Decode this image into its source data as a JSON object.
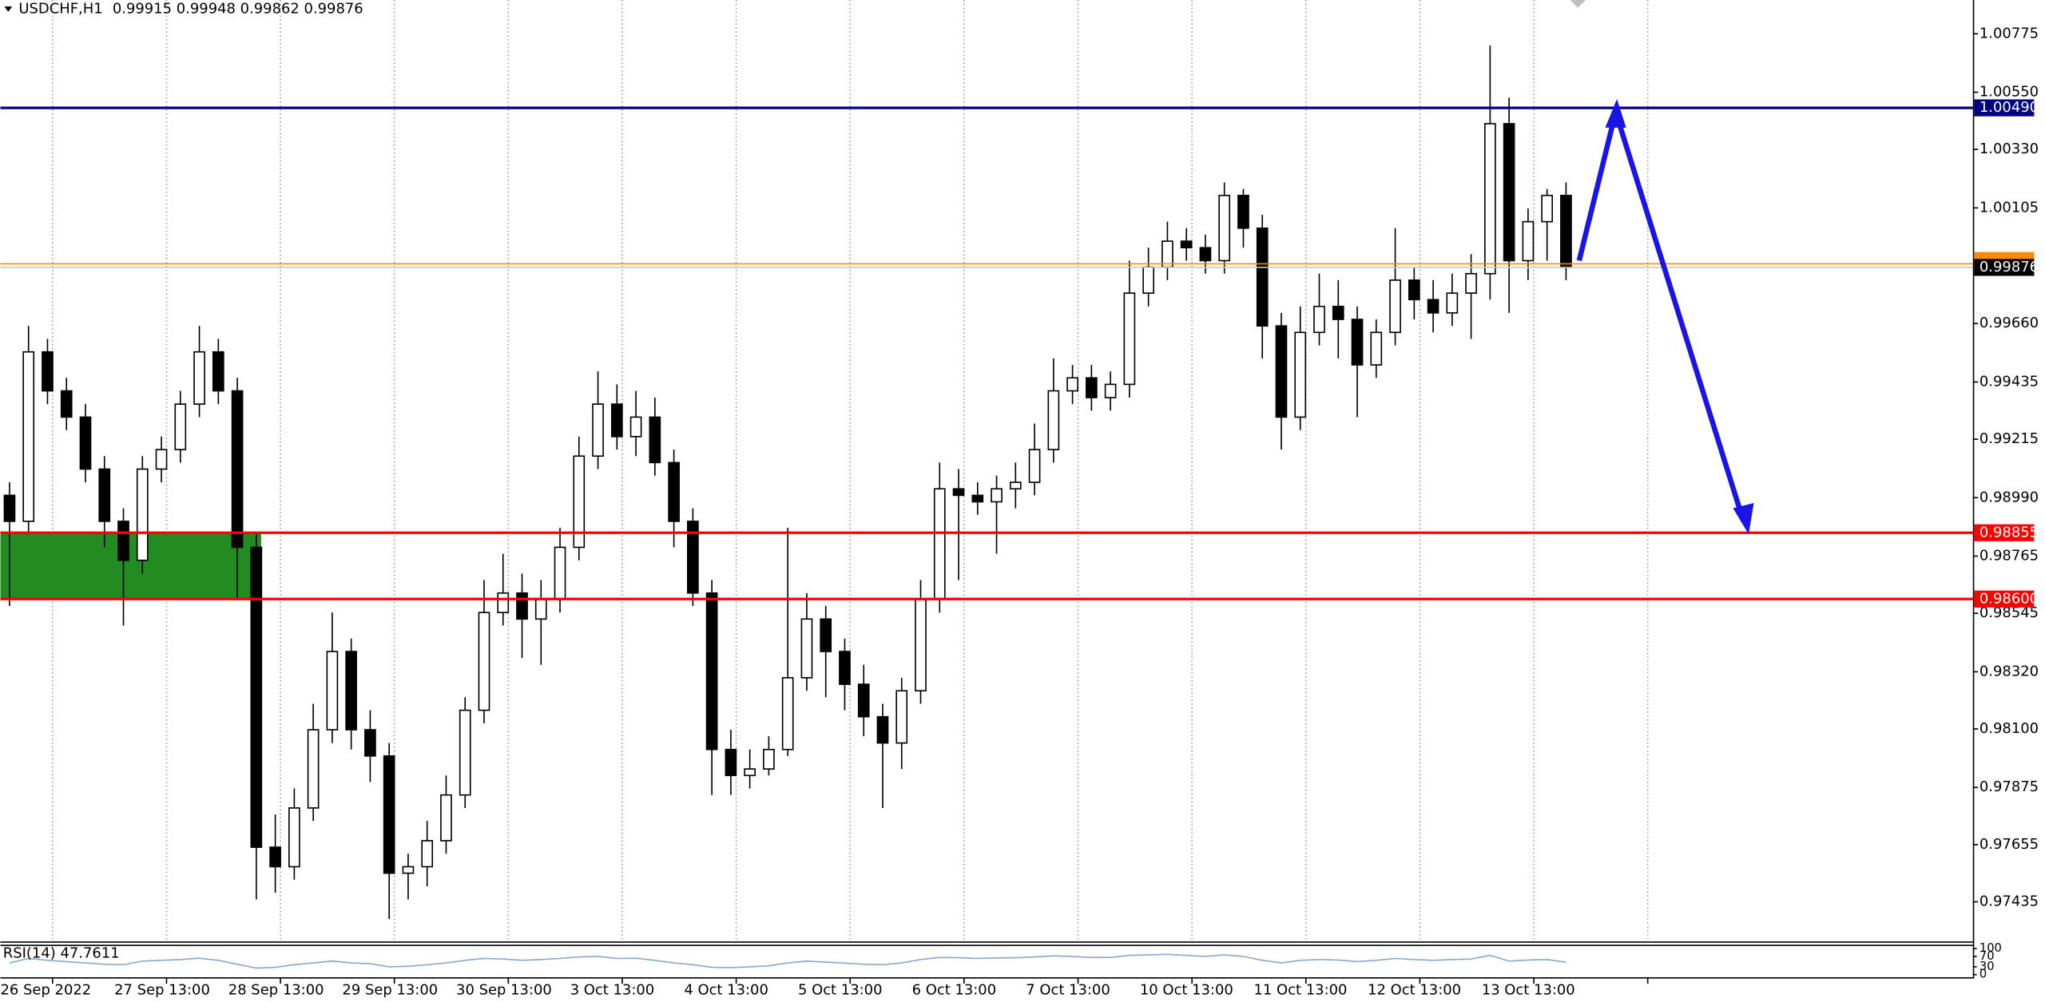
{
  "chart_data": {
    "type": "candlestick",
    "symbol": "USDCHF,H1",
    "ohlc": [
      0.99915,
      0.99948,
      0.99862,
      0.99876
    ],
    "ylim": [
      0.97285,
      1.00905
    ],
    "yticks": [
      1.00775,
      {
        "value": 1.0055,
        "label": "1.00550"
      },
      {
        "value": 1.0033,
        "label": "1.00330"
      },
      1.00105,
      {
        "value": 0.9966,
        "label": "0.99660"
      },
      0.99435,
      0.99215,
      {
        "value": 0.9899,
        "label": "0.98990"
      },
      0.98765,
      0.98545,
      {
        "value": 0.9832,
        "label": "0.98320"
      },
      {
        "value": 0.981,
        "label": "0.98100"
      },
      0.97875,
      0.97655,
      0.97435
    ],
    "xlabels": [
      "26 Sep 2022",
      "27 Sep 13:00",
      "28 Sep 13:00",
      "29 Sep 13:00",
      "30 Sep 13:00",
      "3 Oct 13:00",
      "4 Oct 13:00",
      "5 Oct 13:00",
      "6 Oct 13:00",
      "7 Oct 13:00",
      "10 Oct 13:00",
      "11 Oct 13:00",
      "12 Oct 13:00",
      "13 Oct 13:00"
    ],
    "grid": true,
    "bull_color": "#ffffff",
    "bear_color": "#000000",
    "open": [
      0.98999,
      0.98899,
      0.99551,
      0.99401,
      0.993,
      0.991,
      0.98899,
      0.98749,
      0.991,
      0.99175,
      0.9935,
      0.99551,
      0.99401,
      0.98799,
      0.97645,
      0.9757,
      0.97796,
      0.98097,
      0.98398,
      0.98097,
      0.97996,
      0.97545,
      0.9757,
      0.9767,
      0.97846,
      0.98172,
      0.98548,
      0.98623,
      0.98523,
      0.98598,
      0.98799,
      0.9915,
      0.9935,
      0.99225,
      0.993,
      0.99125,
      0.98899,
      0.98623,
      0.98021,
      0.97921,
      0.97946,
      0.98021,
      0.98297,
      0.98523,
      0.98398,
      0.98272,
      0.98147,
      0.98046,
      0.98247,
      0.98598,
      0.99024,
      0.98999,
      0.98974,
      0.99024,
      0.99049,
      0.99175,
      0.99401,
      0.99451,
      0.99375,
      0.99426,
      0.99777,
      0.99877,
      0.99977,
      0.99952,
      0.99902,
      1.00153,
      1.00027,
      0.99651,
      0.993,
      0.99626,
      0.99726,
      0.99676,
      0.99501,
      0.99626,
      0.99827,
      0.99752,
      0.99701,
      0.99777,
      0.99852,
      1.00429,
      0.99902,
      1.00052,
      1.00153
    ],
    "high": [
      0.99049,
      0.99651,
      0.99601,
      0.99451,
      0.9935,
      0.9915,
      0.98949,
      0.9915,
      0.99225,
      0.99401,
      0.99651,
      0.99601,
      0.99451,
      0.98849,
      0.97771,
      0.97871,
      0.98197,
      0.98548,
      0.98448,
      0.98172,
      0.98046,
      0.9762,
      0.97746,
      0.97921,
      0.98222,
      0.98673,
      0.98774,
      0.98698,
      0.98673,
      0.98874,
      0.99225,
      0.99476,
      0.99426,
      0.99401,
      0.99375,
      0.99175,
      0.98949,
      0.98673,
      0.98097,
      0.98021,
      0.98072,
      0.98874,
      0.98623,
      0.98573,
      0.98448,
      0.98347,
      0.98197,
      0.98297,
      0.98673,
      0.99125,
      0.991,
      0.99049,
      0.99075,
      0.99125,
      0.99275,
      0.99526,
      0.99501,
      0.99501,
      0.99476,
      0.99902,
      0.99952,
      1.00052,
      1.00027,
      1.00002,
      1.00203,
      1.00178,
      1.00078,
      0.99701,
      0.99726,
      0.99852,
      0.99827,
      0.99726,
      0.99676,
      1.00027,
      0.99877,
      0.99827,
      0.99852,
      0.99927,
      1.0073,
      1.00529,
      1.00103,
      1.00178,
      1.00203
    ],
    "low": [
      0.98573,
      0.98849,
      0.9935,
      0.9925,
      0.99049,
      0.98799,
      0.98498,
      0.98698,
      0.99049,
      0.99125,
      0.993,
      0.9935,
      0.98598,
      0.97444,
      0.9747,
      0.9752,
      0.97746,
      0.98046,
      0.98021,
      0.97896,
      0.97369,
      0.97444,
      0.97495,
      0.9762,
      0.97796,
      0.98122,
      0.98498,
      0.98373,
      0.98347,
      0.98548,
      0.98749,
      0.991,
      0.99175,
      0.9915,
      0.99075,
      0.98799,
      0.98573,
      0.97846,
      0.97846,
      0.97871,
      0.97921,
      0.97996,
      0.98247,
      0.98222,
      0.98172,
      0.98072,
      0.97796,
      0.97946,
      0.98197,
      0.98548,
      0.98673,
      0.98924,
      0.98774,
      0.98949,
      0.98999,
      0.99125,
      0.9935,
      0.99325,
      0.99325,
      0.99375,
      0.99726,
      0.99827,
      0.99902,
      0.99852,
      0.99852,
      0.99952,
      0.99526,
      0.99175,
      0.9925,
      0.99576,
      0.99526,
      0.993,
      0.99451,
      0.99576,
      0.99676,
      0.99626,
      0.99651,
      0.99601,
      0.99752,
      0.99701,
      0.99827,
      0.99902,
      0.99827
    ],
    "close": [
      0.98899,
      0.99551,
      0.99401,
      0.993,
      0.991,
      0.98899,
      0.98749,
      0.991,
      0.99175,
      0.9935,
      0.99551,
      0.99401,
      0.98799,
      0.97645,
      0.9757,
      0.97796,
      0.98097,
      0.98398,
      0.98097,
      0.97996,
      0.97545,
      0.9757,
      0.9767,
      0.97846,
      0.98172,
      0.98548,
      0.98623,
      0.98523,
      0.98598,
      0.98799,
      0.9915,
      0.9935,
      0.99225,
      0.993,
      0.99125,
      0.98899,
      0.98623,
      0.98021,
      0.97921,
      0.97946,
      0.98021,
      0.98297,
      0.98523,
      0.98398,
      0.98272,
      0.98147,
      0.98046,
      0.98247,
      0.98598,
      0.99024,
      0.98999,
      0.98974,
      0.99024,
      0.99049,
      0.99175,
      0.99401,
      0.99451,
      0.99375,
      0.99426,
      0.99777,
      0.99877,
      0.99977,
      0.99952,
      0.99902,
      1.00153,
      1.00027,
      0.99651,
      0.993,
      0.99626,
      0.99726,
      0.99676,
      0.99501,
      0.99626,
      0.99827,
      0.99752,
      0.99701,
      0.99777,
      0.99852,
      1.00429,
      0.99902,
      1.00052,
      1.00153,
      0.99876
    ],
    "levels": [
      {
        "value": 1.0049,
        "label": "1.00490",
        "color": "#000080"
      },
      {
        "value": 0.98855,
        "label": "0.98855",
        "color": "#ff0000"
      },
      {
        "value": 0.986,
        "label": "0.98600",
        "color": "#ff0000"
      }
    ],
    "zone": {
      "from": 0.986,
      "to": 0.98855,
      "color": "#228b22"
    },
    "ask_line": {
      "value": 0.9989,
      "color": "#ff8c00"
    },
    "bid_line": {
      "value": 0.99876,
      "label": "0.99876",
      "color": "#000000"
    },
    "rsi": {
      "name": "RSI(14)",
      "color": "#87a9cf",
      "ylim": [
        0,
        100
      ],
      "yticks": [
        100,
        70,
        30,
        0
      ],
      "values": [
        45,
        62,
        55,
        50,
        45,
        40,
        38,
        52,
        55,
        58,
        63,
        55,
        40,
        25,
        28,
        38,
        45,
        52,
        45,
        42,
        30,
        32,
        38,
        45,
        55,
        62,
        60,
        55,
        58,
        62,
        68,
        70,
        62,
        63,
        55,
        45,
        38,
        28,
        27,
        30,
        34,
        45,
        52,
        48,
        44,
        40,
        38,
        45,
        58,
        66,
        65,
        62,
        64,
        65,
        68,
        72,
        70,
        66,
        66,
        74,
        76,
        78,
        74,
        70,
        76,
        70,
        55,
        45,
        55,
        58,
        56,
        50,
        55,
        62,
        58,
        55,
        58,
        60,
        74,
        52,
        56,
        58,
        47.7611
      ]
    }
  }
}
